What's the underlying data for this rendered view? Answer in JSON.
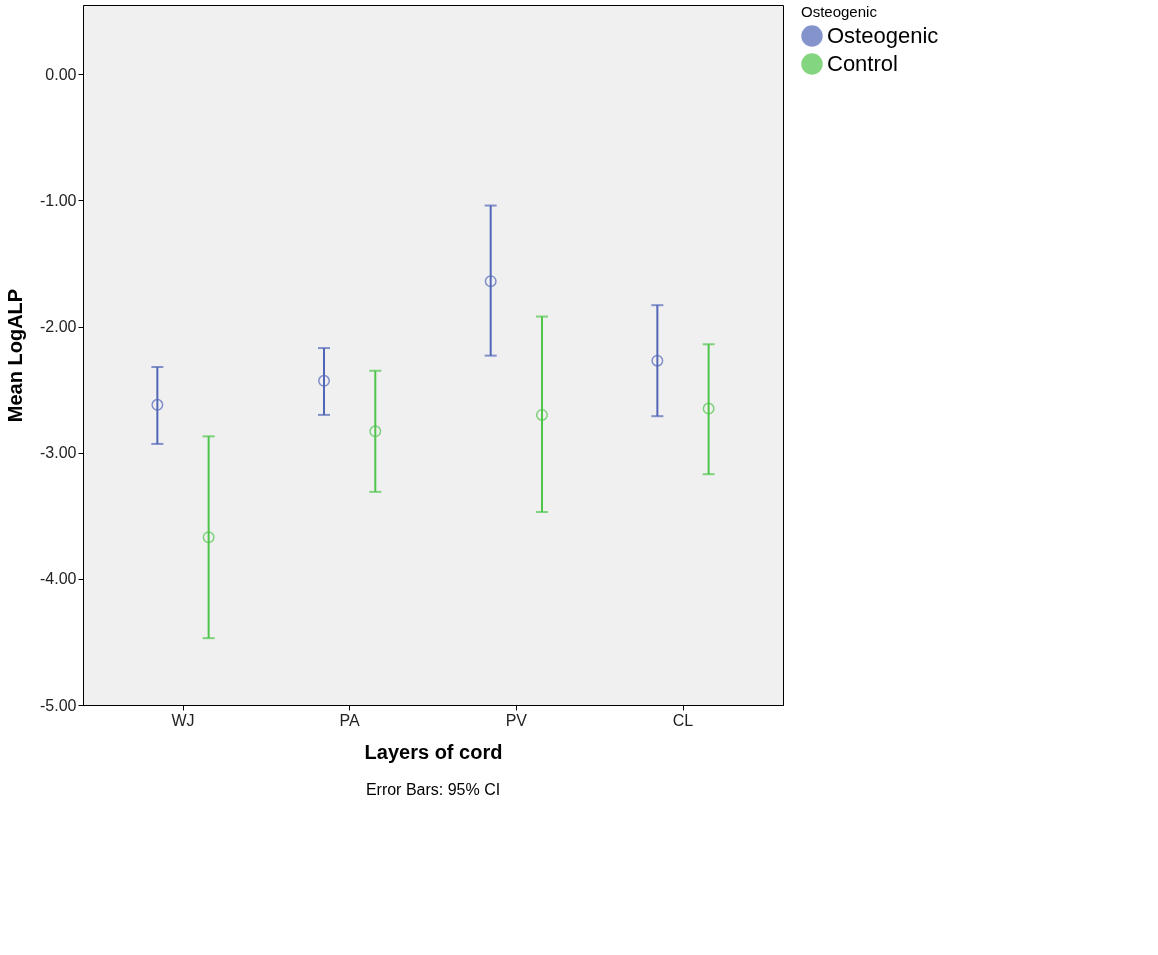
{
  "chart_data": {
    "type": "scatter",
    "xlabel": "Layers of cord",
    "ylabel": "Mean LogALP",
    "legend_title": "Osteogenic",
    "categories": [
      "WJ",
      "PA",
      "PV",
      "CL"
    ],
    "series": [
      {
        "name": "Osteogenic",
        "color": "#5266b8",
        "values": [
          -2.62,
          -2.43,
          -1.64,
          -2.27
        ],
        "errors": [
          [
            -2.93,
            -2.32
          ],
          [
            -2.7,
            -2.17
          ],
          [
            -2.23,
            -1.04
          ],
          [
            -2.71,
            -1.83
          ]
        ]
      },
      {
        "name": "Control",
        "color": "#4fc44a",
        "values": [
          -3.67,
          -2.83,
          -2.7,
          -2.65
        ],
        "errors": [
          [
            -4.47,
            -2.87
          ],
          [
            -3.31,
            -2.35
          ],
          [
            -3.47,
            -1.92
          ],
          [
            -3.17,
            -2.14
          ]
        ]
      }
    ],
    "ylim": [
      -5,
      0.55
    ],
    "yticks": [
      {
        "value": -5,
        "label": "-5.00"
      },
      {
        "value": -4,
        "label": "-4.00"
      },
      {
        "value": -3,
        "label": "-3.00"
      },
      {
        "value": -2,
        "label": "-2.00"
      },
      {
        "value": -1,
        "label": "-1.00"
      },
      {
        "value": 0,
        "label": "0.00"
      }
    ],
    "grid": false,
    "legend": "top right",
    "marker": "circle",
    "annotations": [
      "Error Bars: 95% CI"
    ]
  }
}
